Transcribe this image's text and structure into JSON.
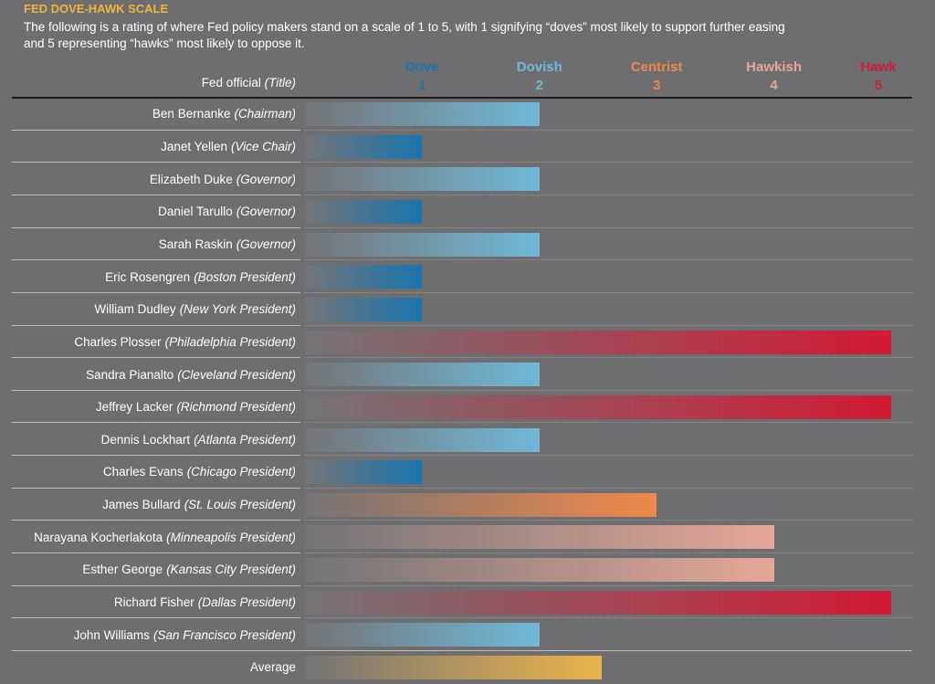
{
  "title": "FED DOVE-HAWK SCALE",
  "subtitle": "The following is a rating of where Fed policy makers stand on a scale of 1 to 5, with 1 signifying “doves” most likely to support further easing and 5 representing “hawks” most likely to oppose it.",
  "chart_data": {
    "type": "bar",
    "orientation": "horizontal",
    "title": "FED DOVE-HAWK SCALE",
    "column_header": {
      "name": "Fed official",
      "title": "(Title)"
    },
    "xlim": [
      0,
      5
    ],
    "scale": [
      {
        "value": 1,
        "label": "Dove",
        "color": "#1a76b0"
      },
      {
        "value": 2,
        "label": "Dovish",
        "color": "#6fb9d8"
      },
      {
        "value": 3,
        "label": "Centrist",
        "color": "#f0884a"
      },
      {
        "value": 4,
        "label": "Hawkish",
        "color": "#e6a797"
      },
      {
        "value": 5,
        "label": "Hawk",
        "color": "#d31a35"
      }
    ],
    "officials": [
      {
        "name": "Ben Bernanke",
        "title": "(Chairman)",
        "value": 2
      },
      {
        "name": "Janet Yellen",
        "title": "(Vice Chair)",
        "value": 1
      },
      {
        "name": "Elizabeth Duke",
        "title": "(Governor)",
        "value": 2
      },
      {
        "name": "Daniel Tarullo",
        "title": "(Governor)",
        "value": 1
      },
      {
        "name": "Sarah Raskin",
        "title": "(Governor)",
        "value": 2
      },
      {
        "name": "Eric Rosengren",
        "title": "(Boston President)",
        "value": 1
      },
      {
        "name": "William Dudley",
        "title": "(New York President)",
        "value": 1
      },
      {
        "name": "Charles Plosser",
        "title": "(Philadelphia President)",
        "value": 5
      },
      {
        "name": "Sandra Pianalto",
        "title": "(Cleveland President)",
        "value": 2
      },
      {
        "name": "Jeffrey Lacker",
        "title": "(Richmond President)",
        "value": 5
      },
      {
        "name": "Dennis Lockhart",
        "title": "(Atlanta President)",
        "value": 2
      },
      {
        "name": "Charles Evans",
        "title": "(Chicago President)",
        "value": 1
      },
      {
        "name": "James Bullard",
        "title": "(St. Louis President)",
        "value": 3
      },
      {
        "name": "Narayana Kocherlakota",
        "title": "(Minneapolis President)",
        "value": 4
      },
      {
        "name": "Esther George",
        "title": "(Kansas City President)",
        "value": 4
      },
      {
        "name": "Richard Fisher",
        "title": "(Dallas President)",
        "value": 5
      },
      {
        "name": "John Williams",
        "title": "(San Francisco President)",
        "value": 2
      }
    ],
    "average": {
      "label": "Average",
      "value": 2.53,
      "color": "#ebb44a"
    }
  }
}
